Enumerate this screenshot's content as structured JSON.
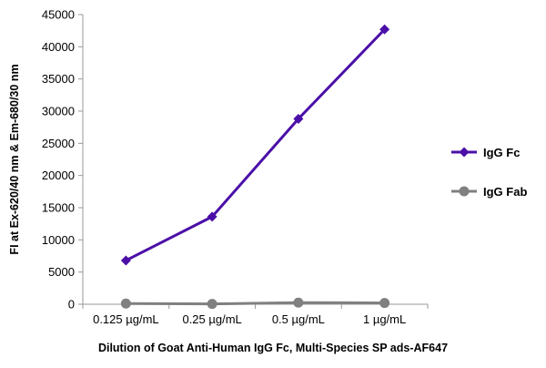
{
  "chart_data": {
    "type": "line",
    "title": "",
    "xlabel": "Dilution of Goat Anti-Human IgG Fc, Multi-Species SP ads-AF647",
    "ylabel": "FI at Ex-620/40 nm & Em-680/30 nm",
    "categories": [
      "0.125 µg/mL",
      "0.25 µg/mL",
      "0.5 µg/mL",
      "1 µg/mL"
    ],
    "ylim": [
      0,
      45000
    ],
    "yticks": [
      0,
      5000,
      10000,
      15000,
      20000,
      25000,
      30000,
      35000,
      40000,
      45000
    ],
    "grid": false,
    "legend_position": "right",
    "series": [
      {
        "name": "IgG Fc",
        "color": "#4B0FA8",
        "marker": "diamond",
        "values": [
          6800,
          13600,
          28800,
          42700
        ]
      },
      {
        "name": "IgG Fab",
        "color": "#808080",
        "marker": "circle",
        "values": [
          100,
          50,
          250,
          200
        ]
      }
    ]
  }
}
